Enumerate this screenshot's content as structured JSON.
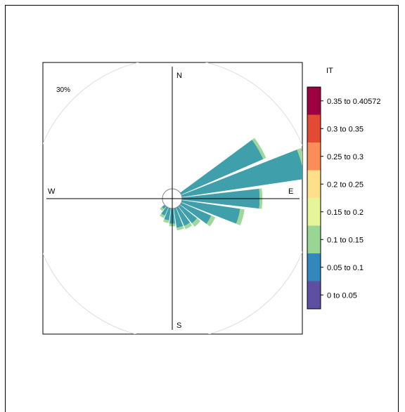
{
  "chart_data": {
    "type": "windrose",
    "directions": {
      "north": "N",
      "east": "E",
      "south": "S",
      "west": "W"
    },
    "circle_label": "30%",
    "legend": {
      "title": "IT",
      "bins": [
        {
          "label": "0 to 0.05",
          "color": "#5e4fa2"
        },
        {
          "label": "0.05 to 0.1",
          "color": "#3288bd"
        },
        {
          "label": "0.1 to 0.15",
          "color": "#99d594"
        },
        {
          "label": "0.15 to 0.2",
          "color": "#e6f598"
        },
        {
          "label": "0.2 to 0.25",
          "color": "#fee08b"
        },
        {
          "label": "0.25 to 0.3",
          "color": "#fc8d59"
        },
        {
          "label": "0.3 to 0.35",
          "color": "#e34a33"
        },
        {
          "label": "0.35 to 0.40572",
          "color": "#9e0142"
        }
      ]
    },
    "series": [
      {
        "name": "0.05 to 0.1",
        "color": "#3f9faa"
      },
      {
        "name": "0.1 to 0.15",
        "color": "#9fd89a"
      }
    ],
    "petals": [
      {
        "direction_deg": 60,
        "values": [
          20.5,
          0.7
        ]
      },
      {
        "direction_deg": 75,
        "values": [
          28.5,
          1.0
        ]
      },
      {
        "direction_deg": 90,
        "values": [
          17.8,
          0.6
        ]
      },
      {
        "direction_deg": 105,
        "values": [
          13.5,
          1.0
        ]
      },
      {
        "direction_deg": 120,
        "values": [
          7.5,
          1.0
        ]
      },
      {
        "direction_deg": 135,
        "values": [
          5.0,
          1.0
        ]
      },
      {
        "direction_deg": 150,
        "values": [
          4.6,
          0.8
        ]
      },
      {
        "direction_deg": 165,
        "values": [
          4.5,
          0.6
        ]
      },
      {
        "direction_deg": 180,
        "values": [
          3.5,
          0.6
        ]
      },
      {
        "direction_deg": 195,
        "values": [
          2.8,
          0.6
        ]
      },
      {
        "direction_deg": 210,
        "values": [
          2.0,
          0.6
        ]
      },
      {
        "direction_deg": 225,
        "values": [
          0.8,
          0.6
        ]
      }
    ],
    "rmax_percent": 30,
    "calm_circle": true
  }
}
